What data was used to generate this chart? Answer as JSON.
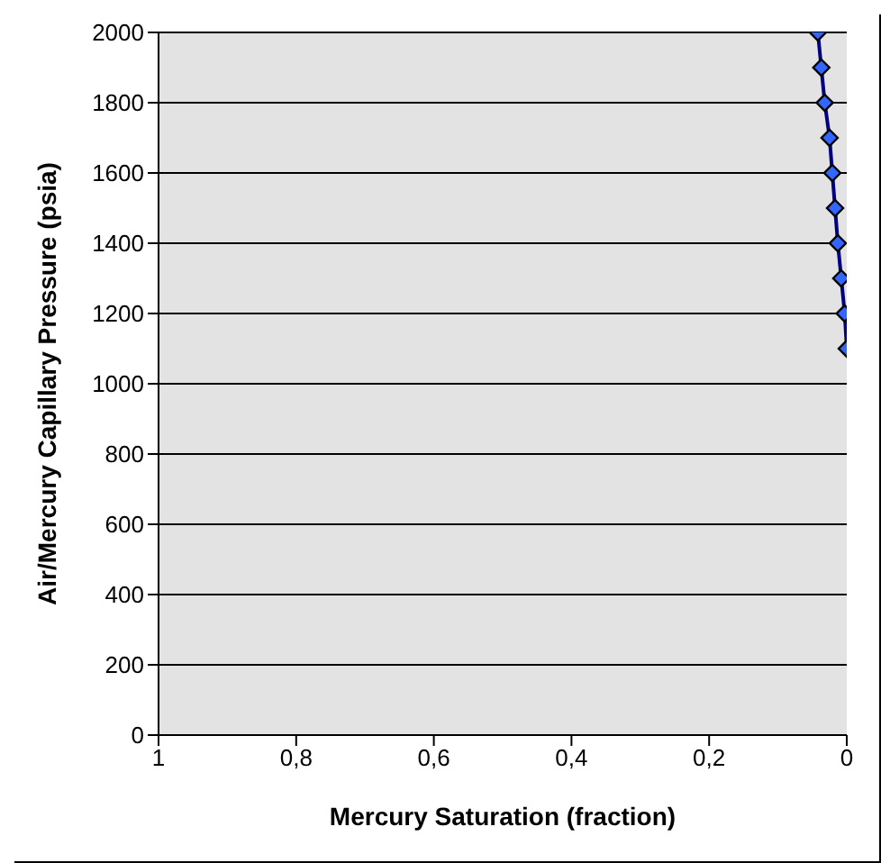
{
  "chart_data": {
    "type": "line",
    "xlabel": "Mercury Saturation (fraction)",
    "ylabel": "Air/Mercury Capillary Pressure (psia)",
    "x": [
      0.042,
      0.037,
      0.032,
      0.025,
      0.021,
      0.017,
      0.013,
      0.008,
      0.003,
      0
    ],
    "series": [
      {
        "color": "#000080",
        "values": [
          2000,
          1900,
          1800,
          1700,
          1600,
          1500,
          1400,
          1300,
          1200,
          1100
        ]
      }
    ],
    "xlim": [
      1,
      0
    ],
    "xticks": [
      1,
      {
        "value": 0.8,
        "label": "0,8"
      },
      {
        "value": 0.6,
        "label": "0,6"
      },
      {
        "value": 0.4,
        "label": "0,4"
      },
      {
        "value": 0.2,
        "label": "0,2"
      },
      0
    ],
    "ylim": [
      0,
      2000
    ],
    "yticks": [
      0,
      200,
      400,
      600,
      800,
      1000,
      1200,
      1400,
      1600,
      1800,
      2000
    ],
    "grid": "y",
    "marker": "diamond"
  }
}
